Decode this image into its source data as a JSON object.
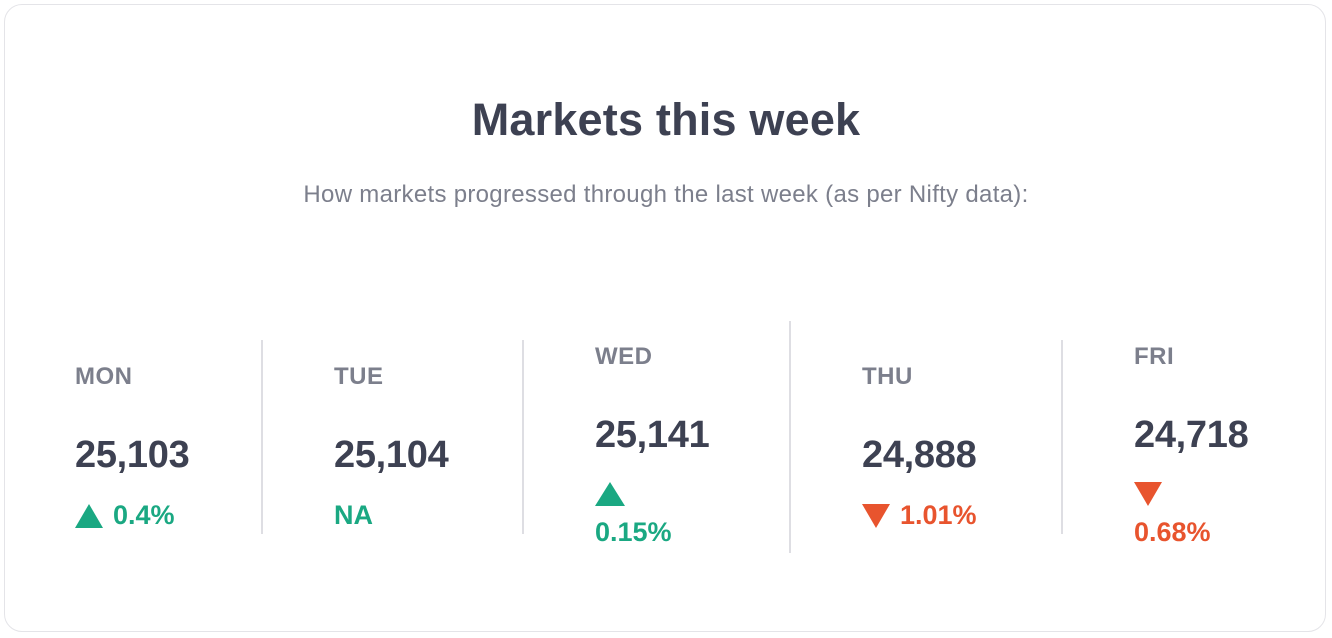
{
  "title": "Markets this week",
  "subtitle": "How markets progressed through the last week (as per Nifty data):",
  "colors": {
    "up": "#1aa882",
    "down": "#e8542e",
    "text_dark": "#3d4152",
    "text_muted": "#7c7f8c"
  },
  "days": [
    {
      "label": "MON",
      "value": "25,103",
      "direction": "up",
      "change": "0.4%"
    },
    {
      "label": "TUE",
      "value": "25,104",
      "direction": "none",
      "change": "NA"
    },
    {
      "label": "WED",
      "value": "25,141",
      "direction": "up",
      "change": "0.15%"
    },
    {
      "label": "THU",
      "value": "24,888",
      "direction": "down",
      "change": "1.01%"
    },
    {
      "label": "FRI",
      "value": "24,718",
      "direction": "down",
      "change": "0.68%"
    }
  ]
}
